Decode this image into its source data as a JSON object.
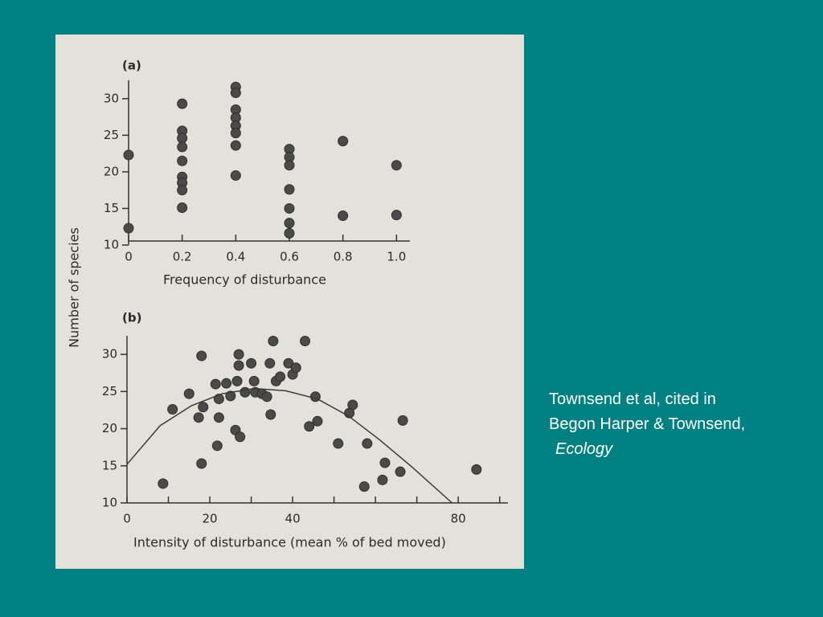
{
  "chart_data": [
    {
      "type": "scatter",
      "panel": "(a)",
      "xlabel": "Frequency of disturbance",
      "ylabel": "Number of species",
      "x": [
        0,
        0,
        0.2,
        0.2,
        0.2,
        0.2,
        0.2,
        0.2,
        0.2,
        0.2,
        0.2,
        0.4,
        0.4,
        0.4,
        0.4,
        0.4,
        0.4,
        0.4,
        0.4,
        0.6,
        0.6,
        0.6,
        0.6,
        0.6,
        0.6,
        0.6,
        0.8,
        0.8,
        1.0,
        1.0
      ],
      "values": [
        22.3,
        12.3,
        29.3,
        25.6,
        24.6,
        23.4,
        21.5,
        19.3,
        18.5,
        17.5,
        15.1,
        31.6,
        30.8,
        28.5,
        27.4,
        26.3,
        25.3,
        23.6,
        19.5,
        23.1,
        22,
        20.9,
        17.6,
        15,
        13,
        11.6,
        24.2,
        14,
        20.9,
        14.1
      ],
      "color": "#4a4a48",
      "xlim": [
        0,
        1.05
      ],
      "ylim": [
        10,
        32.5
      ],
      "xticks": [
        0,
        0.2,
        0.4,
        0.6,
        0.8,
        {
          "value": 1,
          "label": "1.0"
        }
      ],
      "yticks": [
        10,
        15,
        20,
        25,
        30
      ]
    },
    {
      "type": "scatter",
      "panel": "(b)",
      "xlabel": "Intensity of disturbance (mean % of bed moved)",
      "x": [
        8.7,
        11,
        15,
        18,
        18,
        18.4,
        17.3,
        22.2,
        22.2,
        21.8,
        21.4,
        24,
        25,
        26.6,
        27,
        27,
        26.2,
        27.3,
        28.5,
        30,
        30.7,
        31,
        32.6,
        33.8,
        34.5,
        35.3,
        34.7,
        36,
        37,
        39,
        40,
        40.8,
        43,
        44,
        45.5,
        46,
        51,
        54.5,
        53.7,
        58,
        57.3,
        61.7,
        62.3,
        66,
        66.6,
        84.4
      ],
      "values": [
        12.6,
        22.6,
        24.7,
        15.3,
        29.8,
        22.9,
        21.5,
        21.5,
        24,
        17.7,
        26,
        26.1,
        24.4,
        26.4,
        30,
        28.5,
        19.8,
        18.9,
        24.9,
        28.8,
        26.4,
        24.9,
        24.7,
        24.3,
        28.8,
        31.8,
        21.9,
        26.4,
        27,
        28.8,
        27.3,
        28.2,
        31.8,
        20.3,
        24.3,
        21,
        18,
        23.2,
        22.1,
        18,
        12.2,
        13.1,
        15.4,
        14.2,
        21.1,
        14.5
      ],
      "color": "#4a4a48",
      "fit": {
        "x": [
          0,
          8,
          15.6,
          23,
          30.7,
          38.3,
          46,
          53.5,
          61,
          68.7,
          78.5
        ],
        "values": [
          15.2,
          20.4,
          23.1,
          24.7,
          25.4,
          25.1,
          24,
          21.7,
          18.5,
          14.9,
          10
        ]
      },
      "xlim": [
        0,
        92
      ],
      "ylim": [
        10,
        32.5
      ],
      "xticks": [
        0,
        20,
        40,
        80
      ],
      "xminor_ticks": [
        10,
        30,
        50,
        60,
        70,
        90
      ],
      "yticks": [
        10,
        15,
        20,
        25,
        30
      ]
    }
  ],
  "caption": {
    "lines": [
      "Townsend et al, cited in",
      "Begon Harper & Townsend,"
    ],
    "title": "Ecology"
  }
}
